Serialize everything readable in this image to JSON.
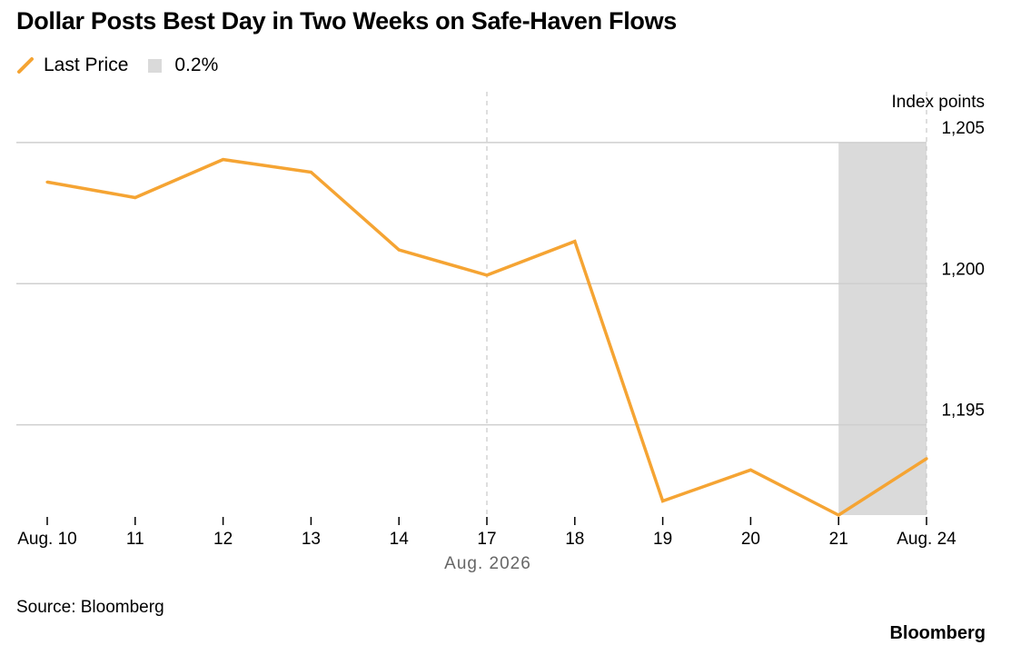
{
  "title": "Dollar Posts Best Day in Two Weeks on Safe-Haven Flows",
  "legend": {
    "line_label": "Last Price",
    "band_label": "0.2%"
  },
  "colors": {
    "line": "#f5a433",
    "band": "#dadada",
    "grid": "#cfcfcf"
  },
  "source": "Source: Bloomberg",
  "brand": "Bloomberg",
  "chart_data": {
    "type": "line",
    "title": "Dollar Posts Best Day in Two Weeks on Safe-Haven Flows",
    "ylabel": "Index points",
    "xlabel": "",
    "x": [
      "2026-08-10",
      "2026-08-11",
      "2026-08-12",
      "2026-08-13",
      "2026-08-14",
      "2026-08-17",
      "2026-08-18",
      "2026-08-19",
      "2026-08-20",
      "2026-08-21",
      "2026-08-24"
    ],
    "x_tick_labels": [
      "Aug. 10",
      "11",
      "12",
      "13",
      "14",
      "17",
      "18",
      "19",
      "20",
      "21",
      "Aug. 24"
    ],
    "x_group_label": "Aug. 2026",
    "series": [
      {
        "name": "Last Price",
        "values": [
          1203.6,
          1203.05,
          1204.4,
          1203.95,
          1201.2,
          1200.3,
          1201.5,
          1192.3,
          1193.4,
          1191.8,
          1193.8
        ]
      }
    ],
    "y_ticks": [
      1195,
      1200,
      1205
    ],
    "y_tick_labels": [
      "1,195",
      "1,200",
      "1,205"
    ],
    "ylim": [
      1191.8,
      1206.8
    ],
    "highlight_band": {
      "label": "0.2%",
      "from": "2026-08-21",
      "to": "2026-08-24",
      "y_top": 1205
    },
    "dashed_vlines": [
      "2026-08-17",
      "2026-08-24"
    ],
    "grid": true,
    "legend_position": "top-left",
    "y_axis_position": "right"
  }
}
